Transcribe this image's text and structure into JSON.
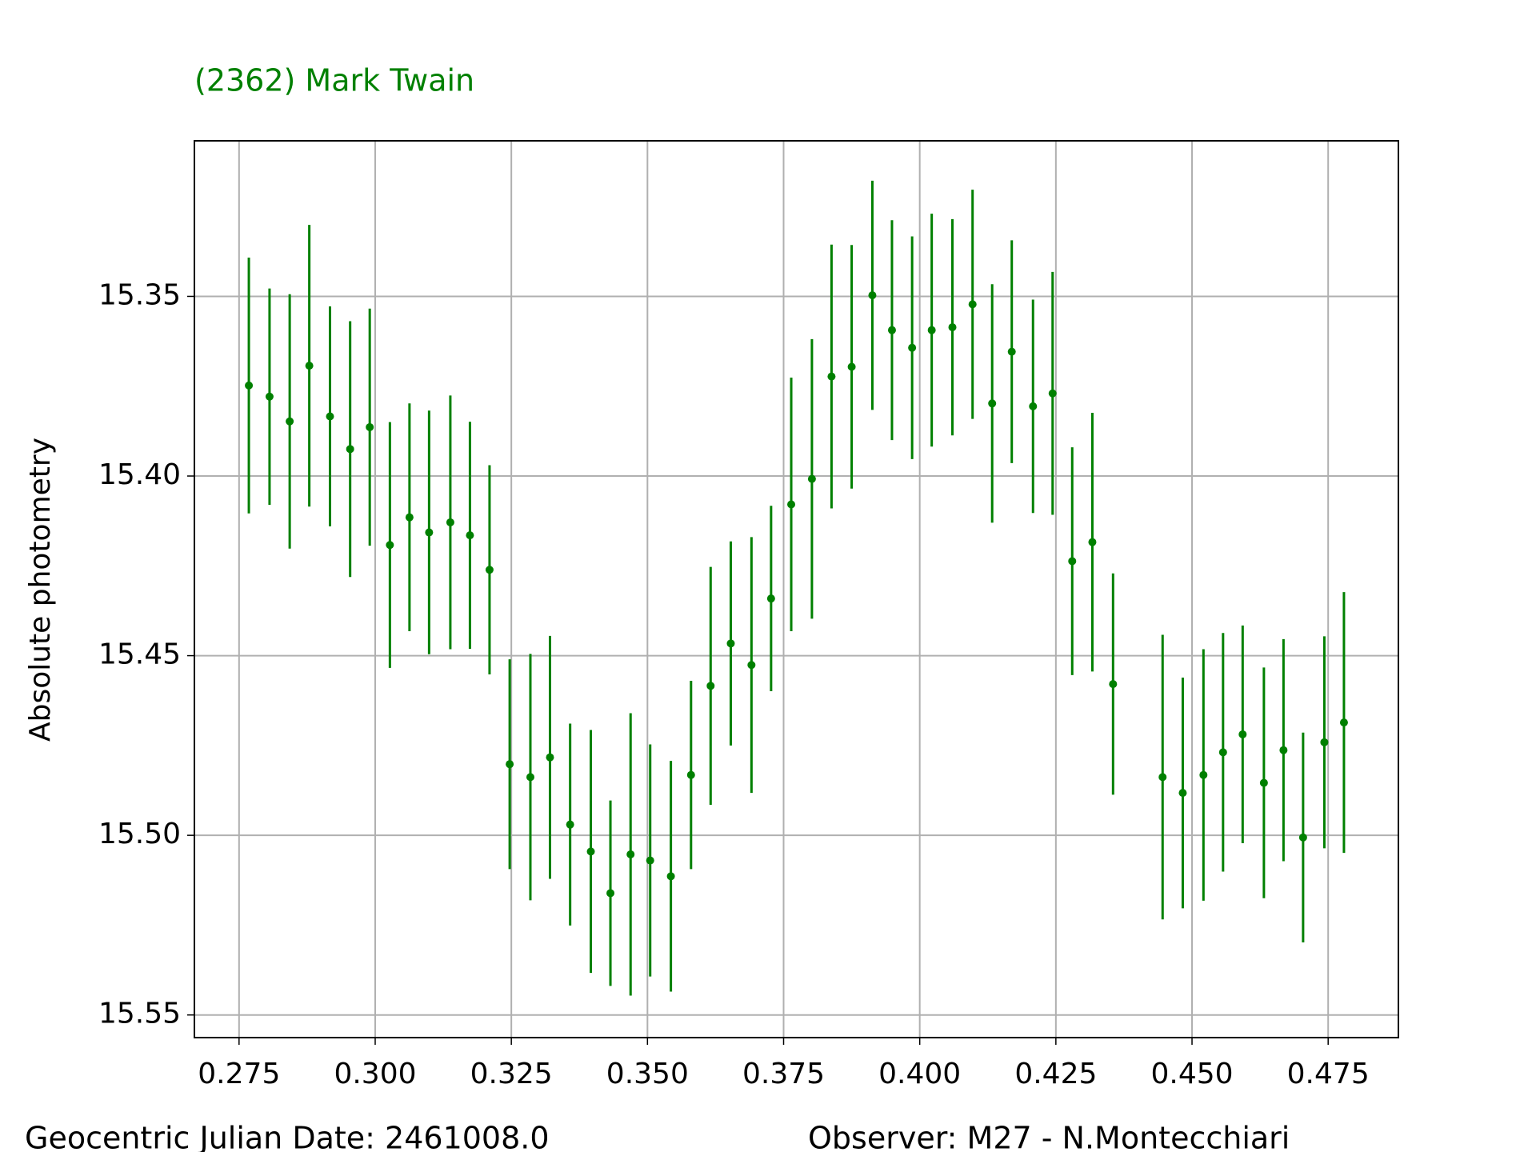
{
  "chart_data": {
    "type": "errorbar",
    "title": "(2362) Mark Twain",
    "y_label": "Absolute photometry",
    "annotations": [
      "Geocentric Julian Date: 2461008.0",
      "Observer: M27 - N.Montecchiari"
    ],
    "x": [
      0.2768,
      0.2806,
      0.2843,
      0.2879,
      0.2917,
      0.2954,
      0.299,
      0.3027,
      0.3063,
      0.3099,
      0.3138,
      0.3174,
      0.321,
      0.3247,
      0.3285,
      0.3321,
      0.3358,
      0.3396,
      0.3432,
      0.3469,
      0.3505,
      0.3543,
      0.358,
      0.3616,
      0.3653,
      0.3691,
      0.3727,
      0.3764,
      0.3802,
      0.3838,
      0.3875,
      0.3913,
      0.3949,
      0.3986,
      0.4022,
      0.406,
      0.4097,
      0.4133,
      0.4169,
      0.4208,
      0.4244,
      0.428,
      0.4317,
      0.4355,
      0.4446,
      0.4483,
      0.4521,
      0.4557,
      0.4593,
      0.4632,
      0.4668,
      0.4704,
      0.4743,
      0.4779
    ],
    "series": [
      {
        "color": "#008000",
        "values": [
          15.3748,
          15.3779,
          15.3848,
          15.3693,
          15.3834,
          15.3925,
          15.3864,
          15.4192,
          15.4115,
          15.4157,
          15.4129,
          15.4165,
          15.4261,
          15.4802,
          15.4838,
          15.4783,
          15.497,
          15.5045,
          15.5161,
          15.5053,
          15.507,
          15.5114,
          15.4832,
          15.4584,
          15.4466,
          15.4526,
          15.4341,
          15.4079,
          15.4008,
          15.3723,
          15.3696,
          15.3497,
          15.3594,
          15.3643,
          15.3594,
          15.3586,
          15.3522,
          15.3798,
          15.3654,
          15.3806,
          15.377,
          15.4237,
          15.4184,
          15.4579,
          15.4838,
          15.4882,
          15.4832,
          15.4769,
          15.4719,
          15.4854,
          15.4763,
          15.5006,
          15.4741,
          15.4686
        ],
        "errors": [
          0.0356,
          0.0301,
          0.0354,
          0.0392,
          0.0306,
          0.0356,
          0.033,
          0.0342,
          0.0317,
          0.0339,
          0.0353,
          0.0316,
          0.0291,
          0.0292,
          0.0343,
          0.0338,
          0.0281,
          0.0338,
          0.0258,
          0.0393,
          0.0323,
          0.0321,
          0.0262,
          0.0331,
          0.0284,
          0.0356,
          0.0258,
          0.0353,
          0.0389,
          0.0367,
          0.0339,
          0.0319,
          0.0306,
          0.031,
          0.0324,
          0.0301,
          0.0319,
          0.0332,
          0.031,
          0.0297,
          0.0338,
          0.0317,
          0.036,
          0.0308,
          0.0396,
          0.0321,
          0.035,
          0.0332,
          0.0303,
          0.0321,
          0.0309,
          0.0292,
          0.0295,
          0.0363
        ]
      }
    ],
    "xlim": [
      0.2668,
      0.4879
    ],
    "ylim": [
      15.5563,
      15.3067
    ],
    "xticks": [
      0.275,
      {
        "value": 0.3,
        "label": "0.300"
      },
      0.325,
      {
        "value": 0.35,
        "label": "0.350"
      },
      0.375,
      {
        "value": 0.4,
        "label": "0.400"
      },
      0.425,
      {
        "value": 0.45,
        "label": "0.450"
      },
      0.475
    ],
    "yticks": [
      15.35,
      {
        "value": 15.4,
        "label": "15.40"
      },
      15.45,
      {
        "value": 15.5,
        "label": "15.50"
      },
      15.55
    ],
    "grid": true
  }
}
